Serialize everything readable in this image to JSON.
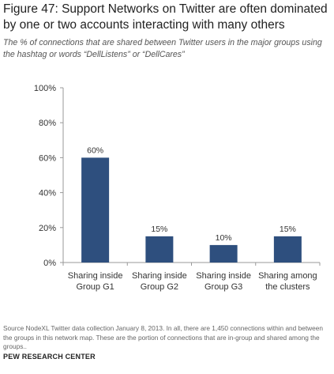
{
  "header": {
    "title": "Figure 47: Support Networks on Twitter are often dominated by one or two accounts interacting with many others",
    "subtitle": "The % of connections that are shared between Twitter users in the major groups using the hashtag or words “DellListens” or “DellCares”"
  },
  "chart_data": {
    "type": "bar",
    "categories": [
      [
        "Sharing inside",
        "Group G1"
      ],
      [
        "Sharing inside",
        "Group G2"
      ],
      [
        "Sharing inside",
        "Group G3"
      ],
      [
        "Sharing among",
        "the clusters"
      ]
    ],
    "values": [
      60,
      15,
      10,
      15
    ],
    "data_labels": [
      "60%",
      "15%",
      "10%",
      "15%"
    ],
    "ylim": [
      0,
      100
    ],
    "yticks": [
      0,
      20,
      40,
      60,
      80,
      100
    ],
    "ytick_labels": [
      "0%",
      "20%",
      "40%",
      "60%",
      "80%",
      "100%"
    ],
    "bar_color": "#2e4f7e",
    "grid": false
  },
  "footer": {
    "source": "Source NodeXL Twitter data collection January 8, 2013. In all, there are 1,450 connections within and between the groups in this network map. These are the portion of connections that are in-group and shared among the groups..",
    "brand": "PEW RESEARCH CENTER"
  }
}
